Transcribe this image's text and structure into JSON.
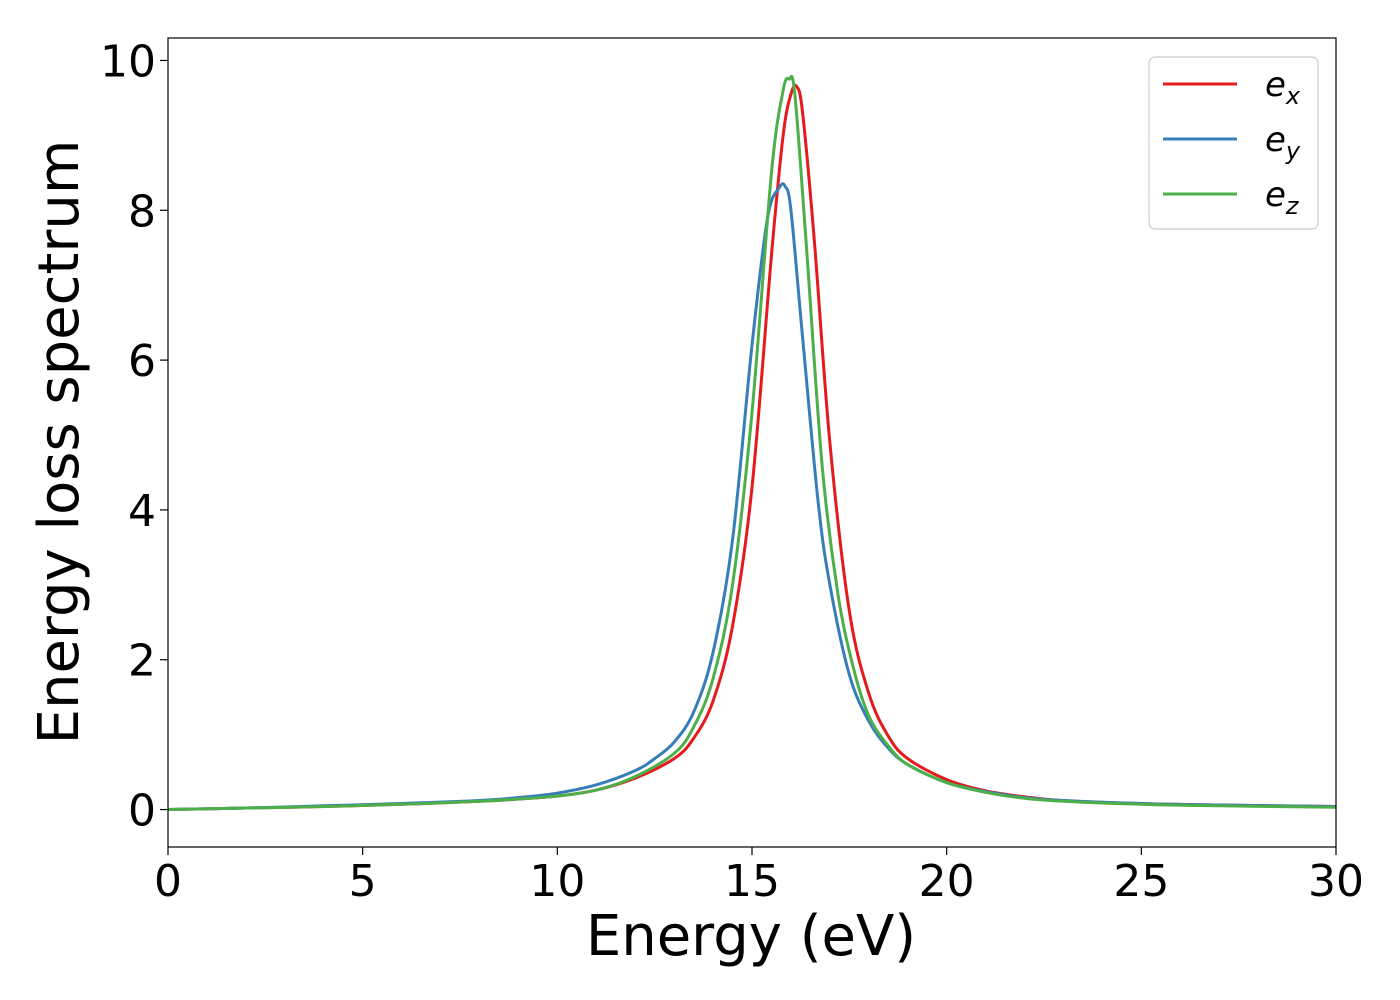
{
  "chart_data": {
    "type": "line",
    "title": "",
    "xlabel": "Energy (eV)",
    "ylabel": "Energy loss spectrum",
    "xlim": [
      0,
      30
    ],
    "ylim": [
      -0.5,
      10.3
    ],
    "xticks": [
      0,
      5,
      10,
      15,
      20,
      25,
      30
    ],
    "yticks": [
      0,
      2,
      4,
      6,
      8,
      10
    ],
    "grid": false,
    "legend_position": "top-right",
    "series": [
      {
        "name": "e",
        "subscript": "x",
        "color": "#e41a1c",
        "x": [
          0,
          2,
          4,
          6,
          8,
          9,
          10,
          11,
          12,
          13,
          13.5,
          14,
          14.5,
          15,
          15.5,
          15.8,
          16.0,
          16.15,
          16.3,
          16.6,
          17.0,
          17.5,
          18.0,
          18.5,
          19.0,
          20,
          21,
          22,
          23,
          25,
          27,
          30
        ],
        "y": [
          0.0,
          0.02,
          0.04,
          0.07,
          0.11,
          0.14,
          0.18,
          0.26,
          0.42,
          0.68,
          0.95,
          1.45,
          2.45,
          4.3,
          7.4,
          9.0,
          9.55,
          9.65,
          9.3,
          7.6,
          4.9,
          2.65,
          1.55,
          0.98,
          0.68,
          0.4,
          0.25,
          0.17,
          0.12,
          0.08,
          0.06,
          0.04
        ]
      },
      {
        "name": "e",
        "subscript": "y",
        "color": "#377eb8",
        "x": [
          0,
          2,
          4,
          6,
          8,
          9,
          10,
          11,
          12,
          12.5,
          13,
          13.5,
          14,
          14.5,
          15,
          15.4,
          15.7,
          15.85,
          16.0,
          16.3,
          16.7,
          17.0,
          17.5,
          18.0,
          18.5,
          19.0,
          20,
          21,
          22,
          23,
          25,
          27,
          30
        ],
        "y": [
          0.0,
          0.02,
          0.05,
          0.08,
          0.12,
          0.16,
          0.22,
          0.33,
          0.52,
          0.68,
          0.9,
          1.3,
          2.1,
          3.6,
          6.2,
          7.9,
          8.3,
          8.32,
          8.0,
          6.3,
          4.1,
          3.0,
          1.8,
          1.18,
          0.82,
          0.6,
          0.36,
          0.24,
          0.16,
          0.12,
          0.08,
          0.06,
          0.04
        ]
      },
      {
        "name": "e",
        "subscript": "z",
        "color": "#4daf4a",
        "x": [
          0,
          2,
          4,
          6,
          8,
          9,
          10,
          11,
          12,
          13,
          13.5,
          14,
          14.5,
          15,
          15.5,
          15.8,
          15.95,
          16.1,
          16.4,
          16.8,
          17.2,
          17.6,
          18.0,
          18.5,
          19.0,
          20,
          21,
          22,
          23,
          25,
          27,
          30
        ],
        "y": [
          0.0,
          0.02,
          0.04,
          0.07,
          0.11,
          0.14,
          0.18,
          0.26,
          0.44,
          0.75,
          1.1,
          1.75,
          3.0,
          5.3,
          8.5,
          9.6,
          9.75,
          9.55,
          7.5,
          4.6,
          2.9,
          1.9,
          1.25,
          0.85,
          0.6,
          0.36,
          0.23,
          0.15,
          0.11,
          0.07,
          0.05,
          0.03
        ]
      }
    ]
  }
}
